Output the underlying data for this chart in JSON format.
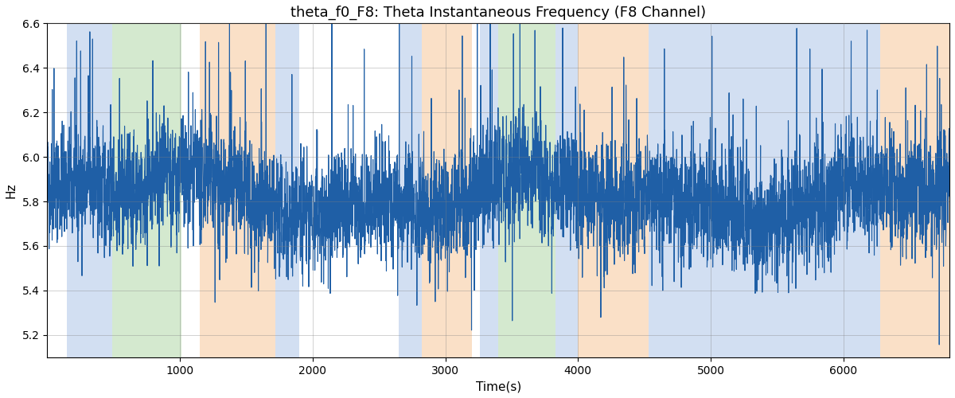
{
  "title": "theta_f0_F8: Theta Instantaneous Frequency (F8 Channel)",
  "xlabel": "Time(s)",
  "ylabel": "Hz",
  "ylim": [
    5.1,
    6.6
  ],
  "xlim": [
    0,
    6800
  ],
  "yticks": [
    5.2,
    5.4,
    5.6,
    5.8,
    6.0,
    6.2,
    6.4,
    6.6
  ],
  "xticks": [
    1000,
    2000,
    3000,
    4000,
    5000,
    6000
  ],
  "line_color": "#1f5fa6",
  "line_width": 0.8,
  "bg_color": "white",
  "bands": [
    {
      "start": 150,
      "end": 490,
      "color": "#aec6e8",
      "alpha": 0.55
    },
    {
      "start": 490,
      "end": 1010,
      "color": "#b2d8a8",
      "alpha": 0.55
    },
    {
      "start": 1150,
      "end": 1720,
      "color": "#f7c89a",
      "alpha": 0.55
    },
    {
      "start": 1720,
      "end": 1900,
      "color": "#aec6e8",
      "alpha": 0.55
    },
    {
      "start": 2650,
      "end": 2820,
      "color": "#aec6e8",
      "alpha": 0.55
    },
    {
      "start": 2820,
      "end": 3200,
      "color": "#f7c89a",
      "alpha": 0.55
    },
    {
      "start": 3260,
      "end": 3400,
      "color": "#aec6e8",
      "alpha": 0.55
    },
    {
      "start": 3400,
      "end": 3830,
      "color": "#b2d8a8",
      "alpha": 0.55
    },
    {
      "start": 3830,
      "end": 4000,
      "color": "#aec6e8",
      "alpha": 0.55
    },
    {
      "start": 4000,
      "end": 4530,
      "color": "#f7c89a",
      "alpha": 0.55
    },
    {
      "start": 4530,
      "end": 6280,
      "color": "#aec6e8",
      "alpha": 0.55
    },
    {
      "start": 6280,
      "end": 6800,
      "color": "#f7c89a",
      "alpha": 0.55
    }
  ],
  "seed": 42,
  "n_points": 6800,
  "mean_freq": 5.82,
  "noise_std": 0.12,
  "title_fontsize": 13,
  "axis_fontsize": 11
}
